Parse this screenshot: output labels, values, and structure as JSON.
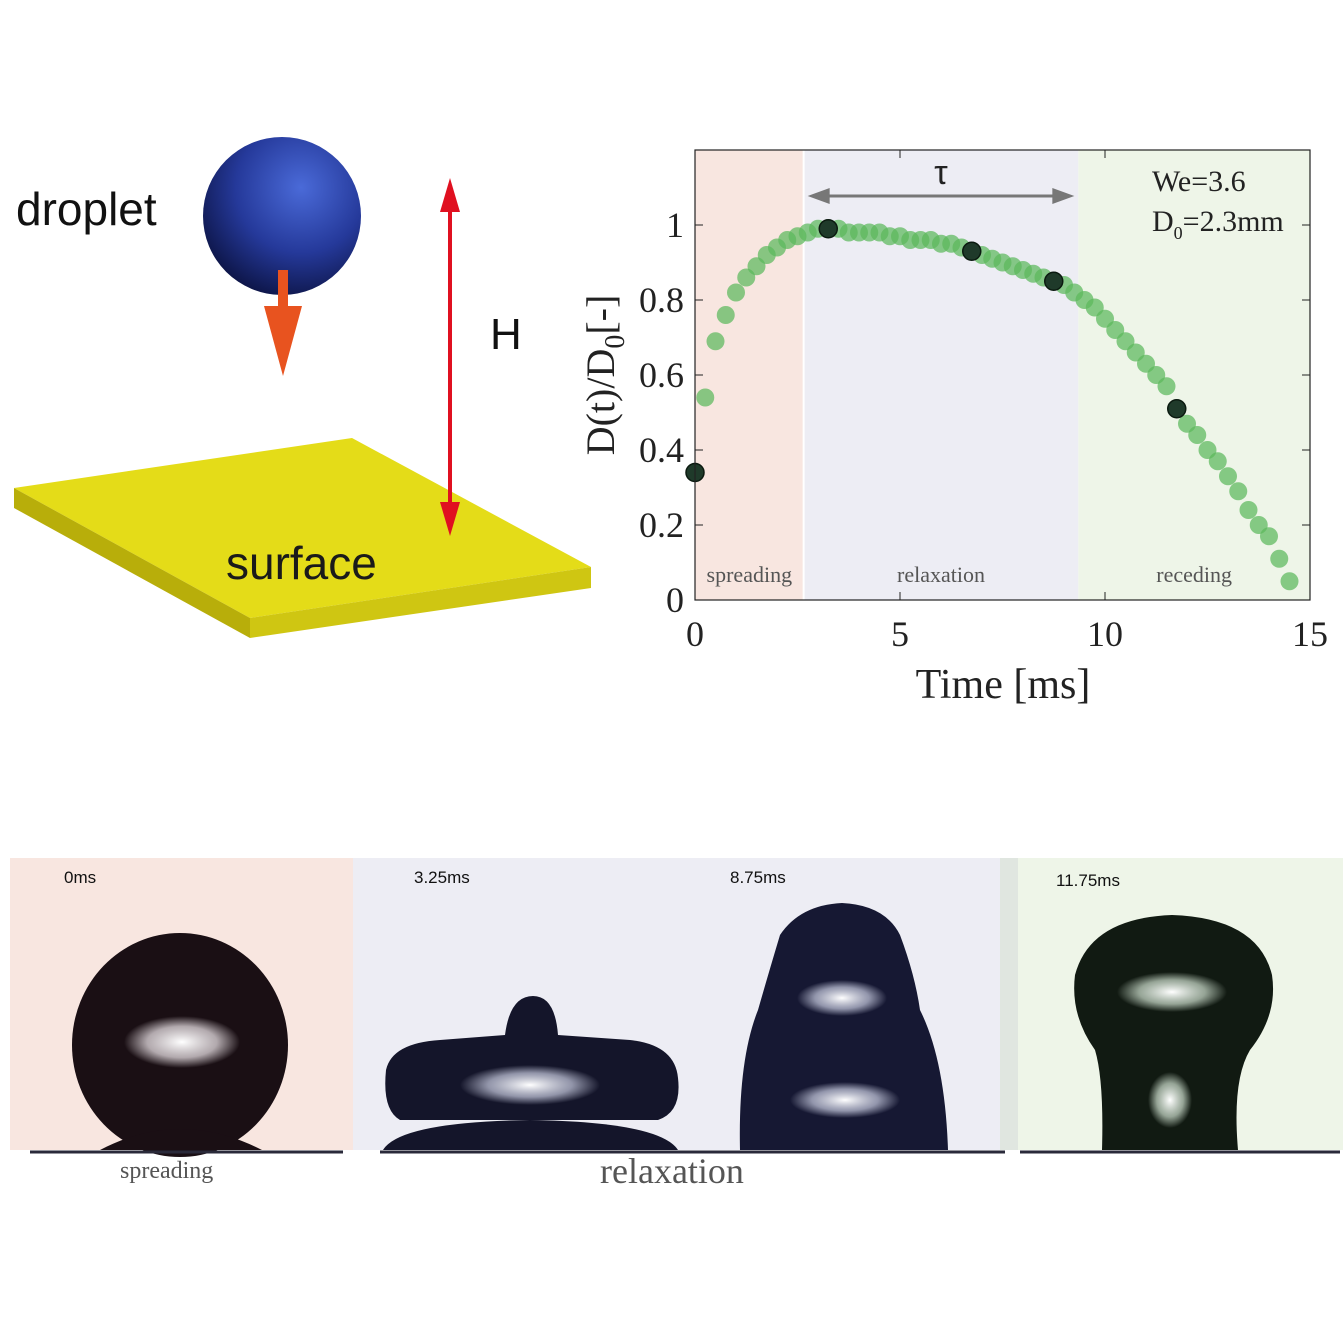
{
  "schematic": {
    "droplet_label": "droplet",
    "height_label": "H",
    "surface_label": "surface",
    "colors": {
      "droplet": "#2a44a8",
      "surface": "#e2dc1a",
      "fall_arrow": "#e8531f",
      "height_arrow": "#e01020"
    }
  },
  "chart_data": {
    "type": "scatter",
    "xlabel": "Time [ms]",
    "ylabel": "D(t)/D0[-]",
    "ylabel_main": "D(t)/D",
    "ylabel_sub": "0",
    "ylabel_tail": "[-]",
    "xlim": [
      0,
      15
    ],
    "ylim": [
      0,
      1.2
    ],
    "xticks": [
      0,
      5,
      10,
      15
    ],
    "yticks": [
      0,
      0.2,
      0.4,
      0.6,
      0.8,
      1
    ],
    "xtick_labels": [
      "0",
      "5",
      "10",
      "15"
    ],
    "ytick_labels": [
      "0",
      "0.2",
      "0.4",
      "0.6",
      "0.8",
      "1"
    ],
    "grid": false,
    "annotation_we": "We=3.6",
    "annotation_d0_main": "D",
    "annotation_d0_sub": "0",
    "annotation_d0_tail": "=2.3mm",
    "tau_label": "τ",
    "tau_range": [
      2.65,
      9.35
    ],
    "regions": [
      {
        "label": "spreading",
        "x0": 0,
        "x1": 2.65,
        "color": "#f8e6e0"
      },
      {
        "label": "relaxation",
        "x0": 2.65,
        "x1": 9.35,
        "color": "#ededf4"
      },
      {
        "label": "receding",
        "x0": 9.35,
        "x1": 15,
        "color": "#eef5e8"
      }
    ],
    "points": [
      [
        0.0,
        0.34
      ],
      [
        0.25,
        0.54
      ],
      [
        0.5,
        0.69
      ],
      [
        0.75,
        0.76
      ],
      [
        1.0,
        0.82
      ],
      [
        1.25,
        0.86
      ],
      [
        1.5,
        0.89
      ],
      [
        1.75,
        0.92
      ],
      [
        2.0,
        0.94
      ],
      [
        2.25,
        0.96
      ],
      [
        2.5,
        0.97
      ],
      [
        2.75,
        0.98
      ],
      [
        3.0,
        0.99
      ],
      [
        3.25,
        0.99
      ],
      [
        3.5,
        0.99
      ],
      [
        3.75,
        0.98
      ],
      [
        4.0,
        0.98
      ],
      [
        4.25,
        0.98
      ],
      [
        4.5,
        0.98
      ],
      [
        4.75,
        0.97
      ],
      [
        5.0,
        0.97
      ],
      [
        5.25,
        0.96
      ],
      [
        5.5,
        0.96
      ],
      [
        5.75,
        0.96
      ],
      [
        6.0,
        0.95
      ],
      [
        6.25,
        0.95
      ],
      [
        6.5,
        0.94
      ],
      [
        6.75,
        0.93
      ],
      [
        7.0,
        0.92
      ],
      [
        7.25,
        0.91
      ],
      [
        7.5,
        0.9
      ],
      [
        7.75,
        0.89
      ],
      [
        8.0,
        0.88
      ],
      [
        8.25,
        0.87
      ],
      [
        8.5,
        0.86
      ],
      [
        8.75,
        0.85
      ],
      [
        9.0,
        0.84
      ],
      [
        9.25,
        0.82
      ],
      [
        9.5,
        0.8
      ],
      [
        9.75,
        0.78
      ],
      [
        10.0,
        0.75
      ],
      [
        10.25,
        0.72
      ],
      [
        10.5,
        0.69
      ],
      [
        10.75,
        0.66
      ],
      [
        11.0,
        0.63
      ],
      [
        11.25,
        0.6
      ],
      [
        11.5,
        0.57
      ],
      [
        11.75,
        0.51
      ],
      [
        12.0,
        0.47
      ],
      [
        12.25,
        0.44
      ],
      [
        12.5,
        0.4
      ],
      [
        12.75,
        0.37
      ],
      [
        13.0,
        0.33
      ],
      [
        13.25,
        0.29
      ],
      [
        13.5,
        0.24
      ],
      [
        13.75,
        0.2
      ],
      [
        14.0,
        0.17
      ],
      [
        14.25,
        0.11
      ],
      [
        14.5,
        0.05
      ]
    ],
    "highlighted_points": [
      [
        0.0,
        0.34
      ],
      [
        3.25,
        0.99
      ],
      [
        6.75,
        0.93
      ],
      [
        8.75,
        0.85
      ],
      [
        11.75,
        0.51
      ]
    ],
    "colors": {
      "point": "#5cb85c",
      "highlight": "#1f3a2a"
    }
  },
  "frames": {
    "items": [
      {
        "time": "0ms",
        "bg": "#f8e6e0"
      },
      {
        "time": "3.25ms",
        "bg": "#ededf4"
      },
      {
        "time": "8.75ms",
        "bg": "#ededf4"
      },
      {
        "time": "11.75ms",
        "bg": "#eef5e8"
      }
    ],
    "captions": {
      "spreading": "spreading",
      "relaxation": "relaxation"
    }
  }
}
